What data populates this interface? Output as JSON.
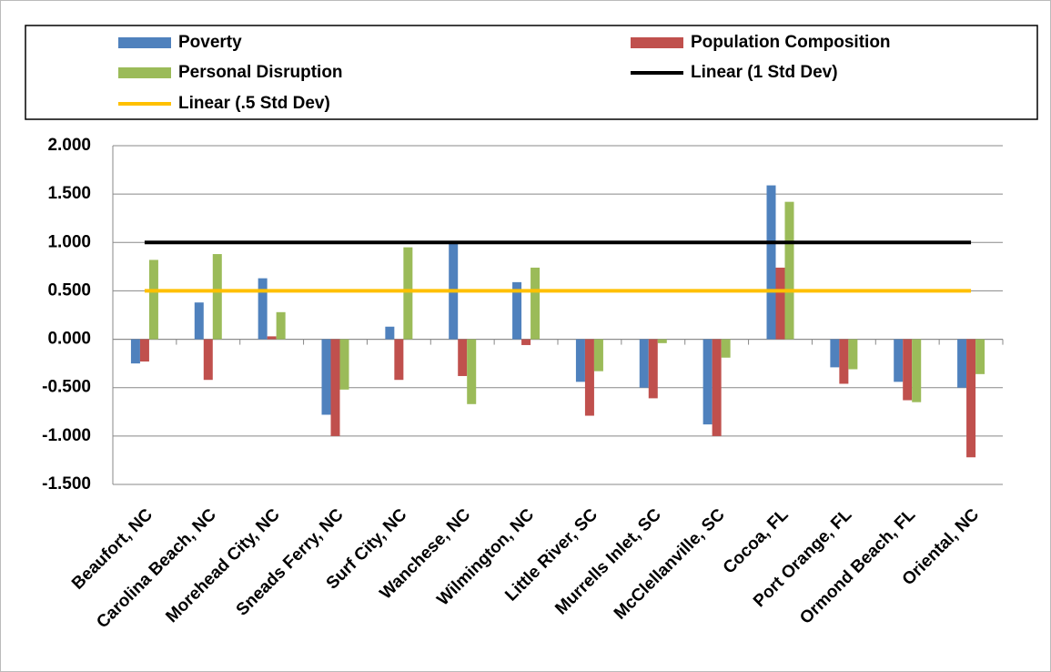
{
  "chart_data": {
    "type": "bar",
    "categories": [
      "Beaufort, NC",
      "Carolina Beach, NC",
      "Morehead City, NC",
      "Sneads Ferry, NC",
      "Surf City, NC",
      "Wanchese, NC",
      "Wilmington, NC",
      "Little River, SC",
      "Murrells Inlet, SC",
      "McClellanville, SC",
      "Cocoa, FL",
      "Port Orange, FL",
      "Ormond Beach, FL",
      "Oriental, NC"
    ],
    "series": [
      {
        "name": "Poverty",
        "color": "#4f81bd",
        "type": "bar",
        "values": [
          -0.25,
          0.38,
          0.63,
          -0.78,
          0.13,
          1.0,
          0.59,
          -0.44,
          -0.5,
          -0.88,
          1.59,
          -0.29,
          -0.44,
          -0.5
        ]
      },
      {
        "name": "Population Composition",
        "color": "#c0504d",
        "type": "bar",
        "values": [
          -0.23,
          -0.42,
          0.03,
          -1.0,
          -0.42,
          -0.38,
          -0.06,
          -0.79,
          -0.61,
          -1.0,
          0.74,
          -0.46,
          -0.63,
          -1.22
        ]
      },
      {
        "name": "Personal Disruption",
        "color": "#9bbb59",
        "type": "bar",
        "values": [
          0.82,
          0.88,
          0.28,
          -0.52,
          0.95,
          -0.67,
          0.74,
          -0.33,
          -0.04,
          -0.19,
          1.42,
          -0.31,
          -0.65,
          -0.36
        ]
      },
      {
        "name": "Linear (1 Std Dev)",
        "color": "#000000",
        "type": "line",
        "values": [
          1,
          1,
          1,
          1,
          1,
          1,
          1,
          1,
          1,
          1,
          1,
          1,
          1,
          1
        ]
      },
      {
        "name": "Linear (.5 Std Dev)",
        "color": "#ffc000",
        "type": "line",
        "values": [
          0.5,
          0.5,
          0.5,
          0.5,
          0.5,
          0.5,
          0.5,
          0.5,
          0.5,
          0.5,
          0.5,
          0.5,
          0.5,
          0.5
        ]
      }
    ],
    "ylim": [
      -1.5,
      2.0
    ],
    "yticks": [
      {
        "value": -1.5,
        "label": "-1.500"
      },
      {
        "value": -1.0,
        "label": "-1.000"
      },
      {
        "value": -0.5,
        "label": "-0.500"
      },
      {
        "value": 0,
        "label": "0.000"
      },
      {
        "value": 0.5,
        "label": "0.500"
      },
      {
        "value": 1.0,
        "label": "1.000"
      },
      {
        "value": 1.5,
        "label": "1.500"
      },
      {
        "value": 2.0,
        "label": "2.000"
      }
    ],
    "grid": true,
    "legend": "top"
  }
}
